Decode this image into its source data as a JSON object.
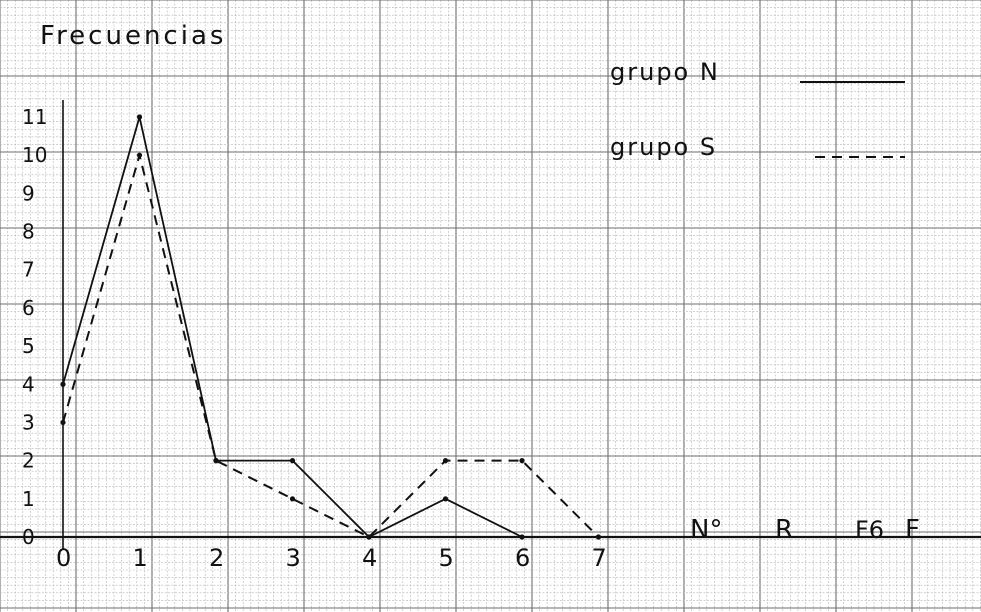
{
  "title": "Frecuencias",
  "legend": {
    "entries": [
      {
        "label": "grupo N",
        "style": "solid"
      },
      {
        "label": "grupo S",
        "style": "dashed"
      }
    ]
  },
  "bottom_labels": [
    "N°",
    "R",
    "F6",
    "F"
  ],
  "colors": {
    "ink": "#111111",
    "grid_minor": "#b5b5b5",
    "grid_major": "#6e6e6e",
    "paper": "#ffffff"
  },
  "chart_data": {
    "type": "line",
    "x": [
      0,
      1,
      2,
      3,
      4,
      5,
      6,
      7
    ],
    "xlim": [
      0,
      7
    ],
    "ylim": [
      0,
      11
    ],
    "grid": true,
    "legend_position": "top-right",
    "x_ticks": [
      "0",
      "1",
      "2",
      "3",
      "4",
      "5",
      "6",
      "7"
    ],
    "y_ticks": [
      {
        "value": 0,
        "label": "0"
      },
      {
        "value": 1,
        "label": "1"
      },
      {
        "value": 2,
        "label": "2"
      },
      {
        "value": 3,
        "label": "3"
      },
      {
        "value": 4,
        "label": "4"
      },
      {
        "value": 5,
        "label": "5"
      },
      {
        "value": 6,
        "label": "6"
      },
      {
        "value": 7,
        "label": "7"
      },
      {
        "value": 8,
        "label": "8"
      },
      {
        "value": 9,
        "label": "9"
      },
      {
        "value": 10,
        "label": "10"
      },
      {
        "value": 11,
        "label": "11"
      }
    ],
    "series": [
      {
        "name": "grupo N",
        "style": "solid",
        "values": [
          4,
          11,
          2,
          2,
          0,
          1,
          0,
          null
        ]
      },
      {
        "name": "grupo S",
        "style": "dashed",
        "values": [
          3,
          10,
          2,
          1,
          0,
          2,
          2,
          0
        ]
      }
    ]
  }
}
